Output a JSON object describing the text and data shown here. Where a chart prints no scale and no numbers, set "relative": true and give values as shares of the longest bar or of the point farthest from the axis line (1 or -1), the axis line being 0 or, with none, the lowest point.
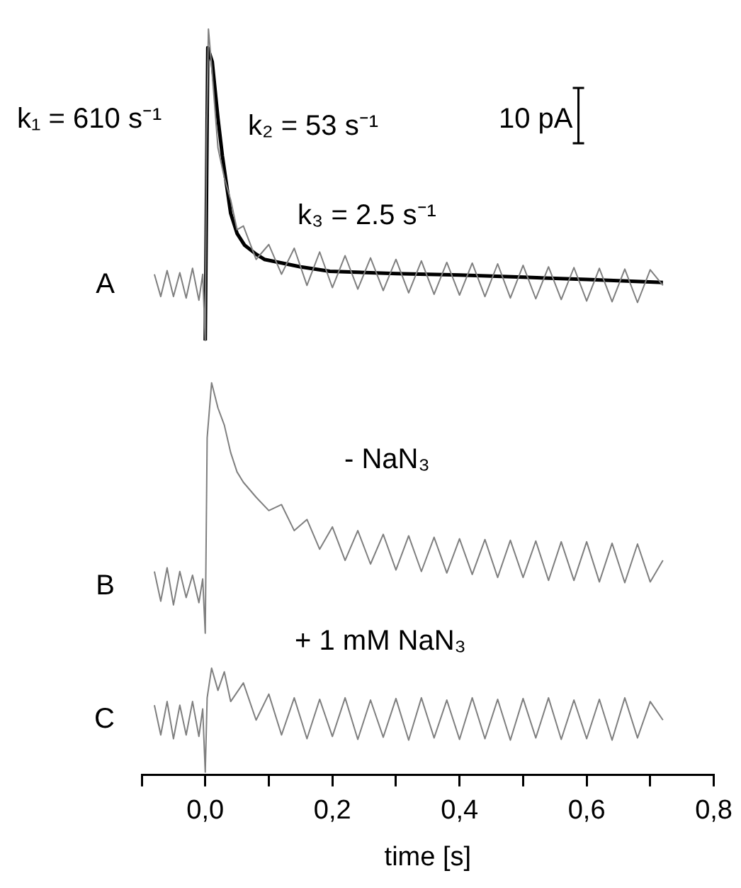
{
  "chart_data": {
    "type": "line",
    "relative": true,
    "xlabel": "time [s]",
    "xlim": [
      -0.1,
      0.8
    ],
    "xticks": [
      {
        "value": -0.1,
        "label": null
      },
      {
        "value": 0,
        "label": "0,0"
      },
      {
        "value": 0.1,
        "label": null
      },
      {
        "value": 0.2,
        "label": "0,2"
      },
      {
        "value": 0.3,
        "label": null
      },
      {
        "value": 0.4,
        "label": "0,4"
      },
      {
        "value": 0.5,
        "label": null
      },
      {
        "value": 0.6,
        "label": "0,6"
      },
      {
        "value": 0.7,
        "label": null
      },
      {
        "value": 0.8,
        "label": "0,8"
      }
    ],
    "grid": false,
    "legend": false,
    "marker": "none",
    "line_style": "solid",
    "annotations": [
      "k₁ = 610 s⁻¹",
      "k₂ = 53 s⁻¹",
      "10 pA",
      "k₃ = 2.5 s⁻¹",
      "- NaN₃",
      "+ 1 mM NaN₃"
    ],
    "series": [
      {
        "name": "A",
        "color": "#7f7f7f",
        "x": [
          -0.08,
          -0.07,
          -0.06,
          -0.05,
          -0.04,
          -0.03,
          -0.02,
          -0.01,
          -0.004,
          0,
          0.002,
          0.005,
          0.01,
          0.02,
          0.03,
          0.04,
          0.05,
          0.06,
          0.08,
          0.1,
          0.12,
          0.14,
          0.16,
          0.18,
          0.2,
          0.22,
          0.24,
          0.26,
          0.28,
          0.3,
          0.32,
          0.34,
          0.36,
          0.38,
          0.4,
          0.42,
          0.44,
          0.46,
          0.48,
          0.5,
          0.52,
          0.54,
          0.56,
          0.58,
          0.6,
          0.62,
          0.64,
          0.66,
          0.68,
          0.7,
          0.72
        ],
        "values": [
          0.67,
          0.64,
          0.675,
          0.64,
          0.672,
          0.638,
          0.678,
          0.635,
          0.67,
          0.581,
          0.85,
          1,
          0.95,
          0.84,
          0.8,
          0.77,
          0.73,
          0.735,
          0.69,
          0.71,
          0.67,
          0.705,
          0.655,
          0.7,
          0.652,
          0.695,
          0.65,
          0.692,
          0.648,
          0.69,
          0.645,
          0.688,
          0.643,
          0.686,
          0.642,
          0.685,
          0.64,
          0.684,
          0.638,
          0.682,
          0.637,
          0.68,
          0.636,
          0.679,
          0.634,
          0.678,
          0.633,
          0.677,
          0.632,
          0.676,
          0.655
        ]
      },
      {
        "color": "#000000",
        "x": [
          0,
          0.004,
          0.011,
          0.02,
          0.027,
          0.04,
          0.05,
          0.062,
          0.08,
          0.093,
          0.15,
          0.196,
          0.3,
          0.4,
          0.5,
          0.6,
          0.72
        ],
        "values": [
          0.581,
          0.975,
          0.956,
          0.88,
          0.829,
          0.752,
          0.725,
          0.709,
          0.697,
          0.69,
          0.68,
          0.674,
          0.671,
          0.669,
          0.666,
          0.663,
          0.659
        ]
      },
      {
        "name": "B",
        "color": "#7f7f7f",
        "x": [
          -0.08,
          -0.07,
          -0.06,
          -0.05,
          -0.04,
          -0.03,
          -0.02,
          -0.01,
          -0.004,
          0,
          0.003,
          0.01,
          0.02,
          0.03,
          0.04,
          0.05,
          0.06,
          0.08,
          0.1,
          0.12,
          0.14,
          0.16,
          0.18,
          0.2,
          0.22,
          0.24,
          0.26,
          0.28,
          0.3,
          0.32,
          0.34,
          0.36,
          0.38,
          0.4,
          0.42,
          0.44,
          0.46,
          0.48,
          0.5,
          0.52,
          0.54,
          0.56,
          0.58,
          0.6,
          0.62,
          0.64,
          0.66,
          0.68,
          0.7,
          0.72
        ],
        "values": [
          0.27,
          0.23,
          0.275,
          0.225,
          0.27,
          0.235,
          0.265,
          0.228,
          0.26,
          0.187,
          0.45,
          0.524,
          0.49,
          0.467,
          0.43,
          0.404,
          0.39,
          0.37,
          0.352,
          0.36,
          0.325,
          0.34,
          0.3,
          0.33,
          0.285,
          0.325,
          0.28,
          0.32,
          0.272,
          0.318,
          0.27,
          0.316,
          0.268,
          0.314,
          0.266,
          0.313,
          0.262,
          0.312,
          0.262,
          0.311,
          0.258,
          0.31,
          0.258,
          0.31,
          0.256,
          0.308,
          0.255,
          0.307,
          0.256,
          0.285
        ]
      },
      {
        "name": "C",
        "color": "#7f7f7f",
        "x": [
          -0.08,
          -0.07,
          -0.06,
          -0.05,
          -0.04,
          -0.03,
          -0.02,
          -0.01,
          -0.004,
          0,
          0.003,
          0.01,
          0.02,
          0.03,
          0.04,
          0.06,
          0.08,
          0.1,
          0.12,
          0.14,
          0.16,
          0.18,
          0.2,
          0.22,
          0.24,
          0.26,
          0.28,
          0.3,
          0.32,
          0.34,
          0.36,
          0.38,
          0.4,
          0.42,
          0.44,
          0.46,
          0.48,
          0.5,
          0.52,
          0.54,
          0.56,
          0.58,
          0.6,
          0.62,
          0.64,
          0.66,
          0.68,
          0.7,
          0.72
        ],
        "values": [
          0.09,
          0.05,
          0.095,
          0.045,
          0.09,
          0.05,
          0.095,
          0.048,
          0.085,
          0,
          0.1,
          0.14,
          0.11,
          0.135,
          0.095,
          0.12,
          0.07,
          0.105,
          0.05,
          0.1,
          0.045,
          0.098,
          0.048,
          0.1,
          0.044,
          0.097,
          0.047,
          0.099,
          0.043,
          0.1,
          0.046,
          0.097,
          0.044,
          0.1,
          0.045,
          0.098,
          0.043,
          0.099,
          0.046,
          0.1,
          0.044,
          0.097,
          0.045,
          0.098,
          0.043,
          0.1,
          0.046,
          0.095,
          0.07
        ]
      }
    ]
  }
}
